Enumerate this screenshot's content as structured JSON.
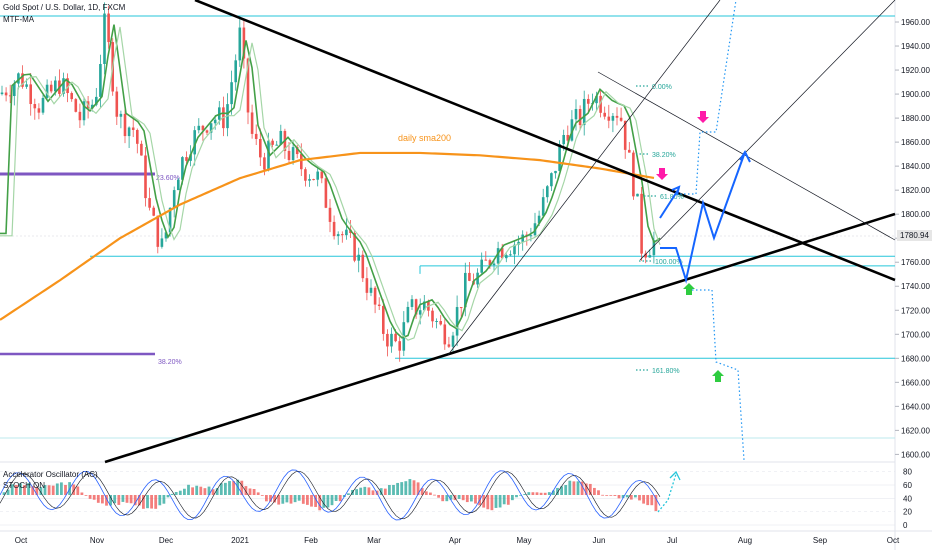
{
  "header": {
    "title": "Gold Spot / U.S. Dollar, 1D, FXCM",
    "indicator": "MTF-MA"
  },
  "oscillator": {
    "title": "Accelerator Oscillator (AC)",
    "subtitle": "STOCH ON"
  },
  "last_price": "1780.94",
  "colors": {
    "candle_up": "#26a69a",
    "candle_down": "#ef5350",
    "sma200": "#f7931a",
    "trendline": "#000000",
    "horizontal_levels": "#26c6da",
    "fib_label": "#26a69a",
    "purple_levels": "#7e57c2",
    "forecast_path": "#1565ff",
    "arrow_up": "#2ecc40",
    "arrow_down": "#ff1aa8",
    "dotted_projection": "#2196f3"
  },
  "chart_data": {
    "type": "line",
    "title": "Gold Spot / U.S. Dollar, 1D, FXCM",
    "y_axis": {
      "ticks": [
        1600,
        1620,
        1640,
        1660,
        1680,
        1700,
        1720,
        1740,
        1760,
        1780,
        1800,
        1820,
        1840,
        1860,
        1880,
        1900,
        1920,
        1940,
        1960
      ],
      "tick_labels": [
        "1600.00",
        "1620.00",
        "1640.00",
        "1660.00",
        "1680.00",
        "1700.00",
        "1720.00",
        "1740.00",
        "1760.00",
        "1780.00",
        "1800.00",
        "1820.00",
        "1840.00",
        "1860.00",
        "1880.00",
        "1900.00",
        "1920.00",
        "1940.00",
        "1960.00"
      ],
      "range": [
        1597,
        1975
      ]
    },
    "x_axis": {
      "tick_labels": [
        "Oct",
        "Nov",
        "Dec",
        "2021",
        "Feb",
        "Mar",
        "Apr",
        "May",
        "Jun",
        "Jul",
        "Aug",
        "Sep",
        "Oct"
      ]
    },
    "series": [
      {
        "name": "Gold Spot price (approx.)",
        "points": [
          [
            "Oct",
            1900
          ],
          [
            "mid Oct",
            1905
          ],
          [
            "Nov",
            1895
          ],
          [
            "early Nov",
            1955
          ],
          [
            "mid Nov",
            1870
          ],
          [
            "late Nov",
            1780
          ],
          [
            "Dec",
            1815
          ],
          [
            "mid Dec",
            1870
          ],
          [
            "2021",
            1945
          ],
          [
            "mid Jan",
            1850
          ],
          [
            "Feb",
            1860
          ],
          [
            "mid Feb",
            1775
          ],
          [
            "Mar",
            1720
          ],
          [
            "early Mar",
            1690
          ],
          [
            "mid Mar",
            1735
          ],
          [
            "Apr",
            1730
          ],
          [
            "mid Apr",
            1770
          ],
          [
            "May",
            1790
          ],
          [
            "mid May",
            1860
          ],
          [
            "Jun",
            1900
          ],
          [
            "mid Jun",
            1860
          ],
          [
            "late Jun",
            1770
          ],
          [
            "last",
            1780.94
          ]
        ]
      },
      {
        "name": "daily sma200",
        "points": [
          [
            "Oct",
            1712
          ],
          [
            "Nov",
            1755
          ],
          [
            "Dec",
            1800
          ],
          [
            "2021",
            1835
          ],
          [
            "Feb",
            1848
          ],
          [
            "Mar",
            1852
          ],
          [
            "Apr",
            1850
          ],
          [
            "May",
            1845
          ],
          [
            "Jun",
            1838
          ],
          [
            "late Jun",
            1830
          ]
        ]
      }
    ],
    "annotations": [
      "daily sma200",
      "0.00%",
      "38.20%",
      "61.80%",
      "100.00%",
      "161.80%",
      "23.60%",
      "38.20%"
    ],
    "horizontal_levels": [
      1965,
      1765,
      1757,
      1680
    ],
    "oscillator": {
      "name": "Accelerator Oscillator (AC) / Stochastic",
      "y_ticks": [
        0,
        20,
        40,
        60,
        80
      ],
      "range": [
        0,
        90
      ]
    }
  }
}
